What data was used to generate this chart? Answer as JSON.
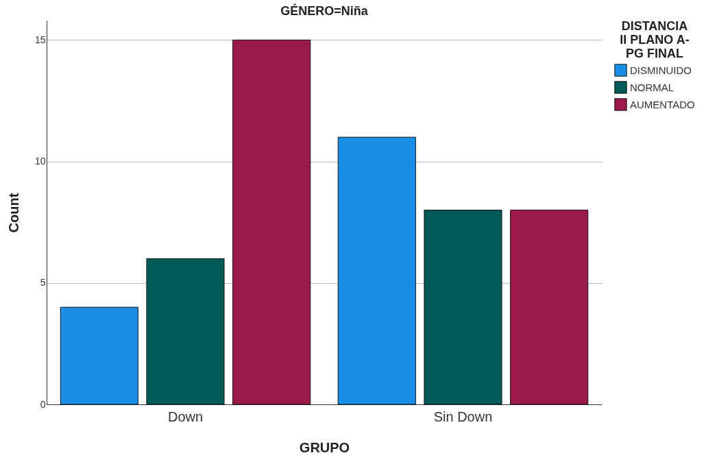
{
  "chart_data": {
    "type": "bar",
    "title": "GÉNERO=Niña",
    "xlabel": "GRUPO",
    "ylabel": "Count",
    "legend_title": "DISTANCIA II PLANO A-PG FINAL",
    "categories": [
      "Down",
      "Sin Down"
    ],
    "series": [
      {
        "name": "DISMINUIDO",
        "color": "#1a8ee6",
        "values": [
          4,
          11
        ]
      },
      {
        "name": "NORMAL",
        "color": "#005a58",
        "values": [
          6,
          8
        ]
      },
      {
        "name": "AUMENTADO",
        "color": "#9c194c",
        "values": [
          15,
          8
        ]
      }
    ],
    "ylim": [
      0,
      15.8
    ],
    "yticks": [
      0,
      5,
      10,
      15
    ],
    "grid": "y",
    "legend": "right"
  }
}
